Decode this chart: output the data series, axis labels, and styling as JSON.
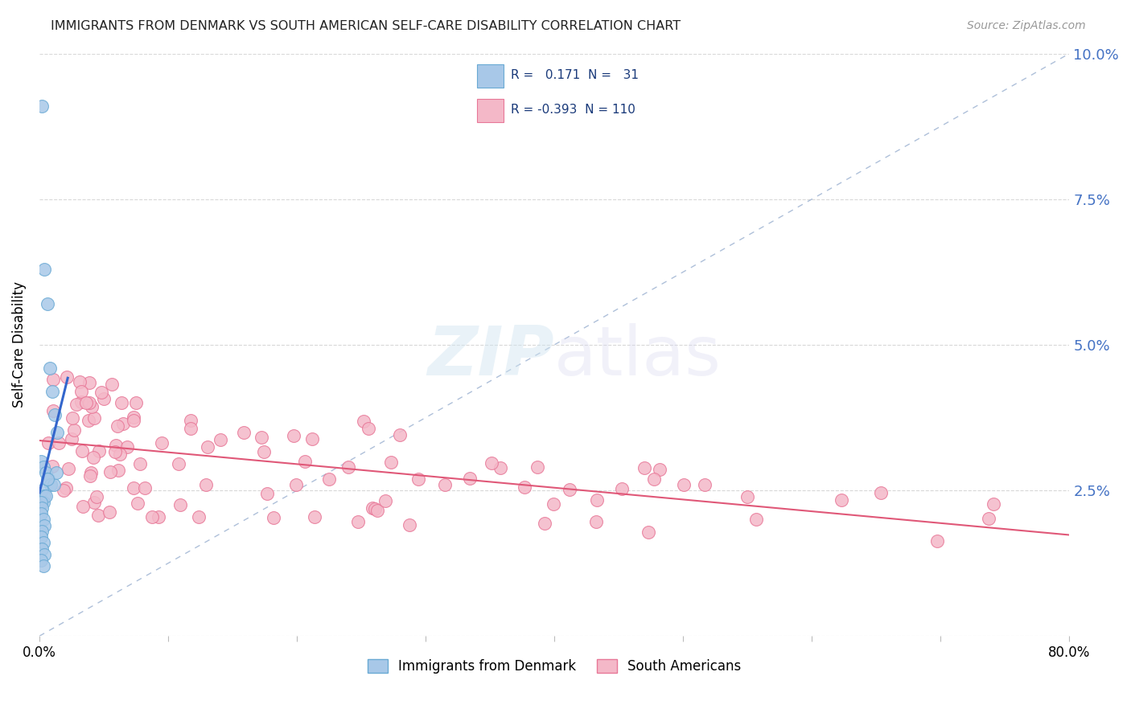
{
  "title": "IMMIGRANTS FROM DENMARK VS SOUTH AMERICAN SELF-CARE DISABILITY CORRELATION CHART",
  "source": "Source: ZipAtlas.com",
  "ylabel": "Self-Care Disability",
  "legend_R1": "0.171",
  "legend_N1": "31",
  "legend_R2": "-0.393",
  "legend_N2": "110",
  "denmark_color": "#a8c8e8",
  "denmark_edge": "#6aaad4",
  "sa_color": "#f4b8c8",
  "sa_edge": "#e87898",
  "trend_denmark_color": "#3366cc",
  "trend_sa_color": "#e05878",
  "ref_line_color": "#9ab0d0",
  "background_color": "#ffffff",
  "grid_color": "#d8d8d8",
  "xlim": [
    0.0,
    0.8
  ],
  "ylim": [
    0.0,
    0.1
  ],
  "ytick_vals": [
    0.0,
    0.025,
    0.05,
    0.075,
    0.1
  ],
  "ytick_labels": [
    "",
    "2.5%",
    "5.0%",
    "7.5%",
    "10.0%"
  ],
  "xtick_vals": [
    0.0,
    0.1,
    0.2,
    0.3,
    0.4,
    0.5,
    0.6,
    0.7,
    0.8
  ],
  "xtick_labels": [
    "0.0%",
    "",
    "",
    "",
    "",
    "",
    "",
    "",
    "80.0%"
  ]
}
